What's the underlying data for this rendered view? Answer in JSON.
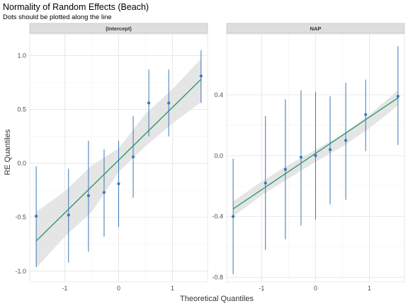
{
  "chart_data": {
    "type": "scatter",
    "title": "Normality of Random Effects (Beach)",
    "subtitle": "Dots should be plotted along the line",
    "xlabel": "Theoretical Quantiles",
    "ylabel": "RE Quantiles",
    "grid": true,
    "colors": {
      "points": "#3a78b4",
      "errorbars": "#3a78b4",
      "line": "#2e9a6b",
      "band": "#e0e0e0",
      "strip": "#dedede",
      "gridline": "#e6e6e6"
    },
    "panels": [
      {
        "strip": "(Intercept)",
        "xlim": [
          -1.65,
          1.65
        ],
        "ylim": [
          -1.1,
          1.2
        ],
        "x_ticks": [
          -1,
          0,
          1
        ],
        "y_ticks": [
          -1.0,
          -0.5,
          0.0,
          0.5,
          1.0
        ],
        "y_tick_labels": [
          "-1.0",
          "-0.5",
          "0.0",
          "0.5",
          "1.0"
        ],
        "points": [
          {
            "x": -1.53,
            "y": -0.49,
            "lower": -0.96,
            "upper": -0.03
          },
          {
            "x": -0.93,
            "y": -0.48,
            "lower": -0.92,
            "upper": -0.05
          },
          {
            "x": -0.56,
            "y": -0.3,
            "lower": -0.82,
            "upper": 0.21
          },
          {
            "x": -0.27,
            "y": -0.27,
            "lower": -0.68,
            "upper": 0.13
          },
          {
            "x": 0.0,
            "y": -0.19,
            "lower": -0.59,
            "upper": 0.21
          },
          {
            "x": 0.27,
            "y": 0.06,
            "lower": -0.32,
            "upper": 0.44
          },
          {
            "x": 0.56,
            "y": 0.56,
            "lower": 0.25,
            "upper": 0.87
          },
          {
            "x": 0.93,
            "y": 0.56,
            "lower": 0.25,
            "upper": 0.87
          },
          {
            "x": 1.53,
            "y": 0.81,
            "lower": 0.56,
            "upper": 1.05
          }
        ],
        "fit_line": {
          "x": [
            -1.53,
            1.53
          ],
          "y": [
            -0.72,
            0.78
          ]
        },
        "band": {
          "x": [
            -1.53,
            -1.0,
            -0.5,
            0.0,
            0.5,
            1.0,
            1.53
          ],
          "lower": [
            -0.97,
            -0.68,
            -0.45,
            -0.08,
            0.16,
            0.37,
            0.57
          ],
          "upper": [
            -0.45,
            -0.26,
            -0.02,
            0.14,
            0.46,
            0.69,
            0.97
          ]
        }
      },
      {
        "strip": "NAP",
        "xlim": [
          -1.65,
          1.65
        ],
        "ylim": [
          -0.83,
          0.8
        ],
        "x_ticks": [
          -1,
          0,
          1
        ],
        "y_ticks": [
          -0.8,
          -0.4,
          0.0,
          0.4
        ],
        "y_tick_labels": [
          "-0.8",
          "-0.4",
          "0.0",
          "0.4"
        ],
        "points": [
          {
            "x": -1.53,
            "y": -0.4,
            "lower": -0.78,
            "upper": -0.02
          },
          {
            "x": -0.93,
            "y": -0.18,
            "lower": -0.62,
            "upper": 0.26
          },
          {
            "x": -0.56,
            "y": -0.09,
            "lower": -0.55,
            "upper": 0.37
          },
          {
            "x": -0.27,
            "y": -0.01,
            "lower": -0.46,
            "upper": 0.43
          },
          {
            "x": 0.0,
            "y": 0.0,
            "lower": -0.42,
            "upper": 0.42
          },
          {
            "x": 0.27,
            "y": 0.04,
            "lower": -0.32,
            "upper": 0.39
          },
          {
            "x": 0.56,
            "y": 0.1,
            "lower": -0.29,
            "upper": 0.48
          },
          {
            "x": 0.93,
            "y": 0.27,
            "lower": 0.03,
            "upper": 0.5
          },
          {
            "x": 1.53,
            "y": 0.39,
            "lower": 0.07,
            "upper": 0.72
          }
        ],
        "fit_line": {
          "x": [
            -1.53,
            1.53
          ],
          "y": [
            -0.35,
            0.38
          ]
        },
        "band": {
          "x": [
            -1.53,
            -1.0,
            -0.5,
            0.0,
            0.5,
            1.0,
            1.53
          ],
          "lower": [
            -0.4,
            -0.26,
            -0.15,
            -0.04,
            0.06,
            0.18,
            0.33
          ],
          "upper": [
            -0.3,
            -0.17,
            -0.06,
            0.04,
            0.14,
            0.27,
            0.43
          ]
        }
      }
    ]
  }
}
